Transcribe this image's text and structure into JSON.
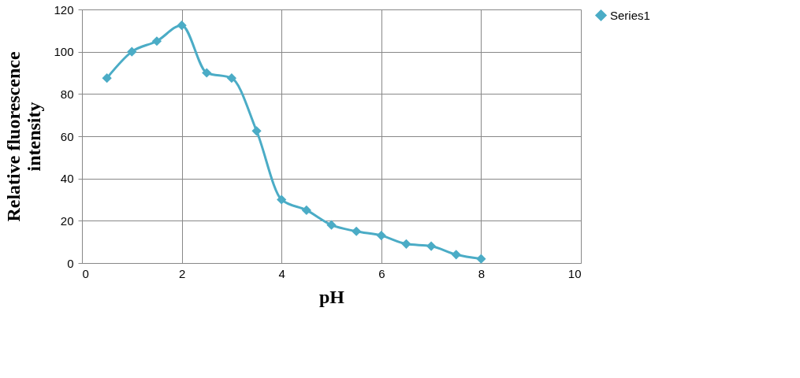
{
  "chart_data": {
    "type": "line",
    "xlabel": "pH",
    "ylabel": "Relative fluorescence intensity",
    "x": [
      0.5,
      1,
      1.5,
      2,
      2.5,
      3,
      3.5,
      4,
      4.5,
      5,
      5.5,
      6,
      6.5,
      7,
      7.5,
      8
    ],
    "series": [
      {
        "name": "Series1",
        "color": "#4bacc6",
        "values": [
          87.5,
          100,
          105,
          112.5,
          90,
          87.5,
          62.5,
          30,
          25,
          18,
          15,
          13,
          9,
          8,
          4,
          2
        ]
      }
    ],
    "xlim": [
      0,
      10
    ],
    "xticks": [
      0,
      2,
      4,
      6,
      8,
      10
    ],
    "ylim": [
      0,
      120
    ],
    "yticks": [
      0,
      20,
      40,
      60,
      80,
      100,
      120
    ],
    "grid": true,
    "legend": "right",
    "marker": "diamond",
    "line_style": "solid"
  }
}
